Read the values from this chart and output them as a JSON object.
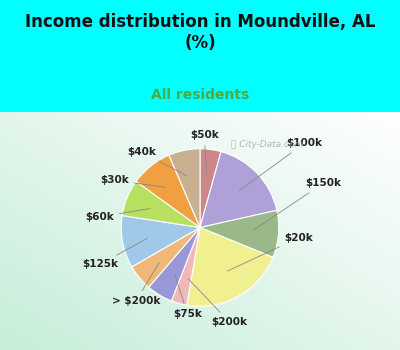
{
  "title": "Income distribution in Moundville, AL\n(%)",
  "subtitle": "All residents",
  "title_color": "#111111",
  "subtitle_color": "#4aaa44",
  "background_top": "#00ffff",
  "background_chart_color": "#d8f0e8",
  "watermark": "ⓘ City-Data.com",
  "labels": [
    "$50k",
    "$100k",
    "$150k",
    "$20k",
    "$200k",
    "$75k",
    "> $200k",
    "$125k",
    "$60k",
    "$30k",
    "$40k"
  ],
  "values": [
    4,
    16,
    9,
    20,
    3,
    5,
    5,
    10,
    7,
    8,
    6
  ],
  "colors": [
    "#cc8888",
    "#b0a0d8",
    "#9ab888",
    "#f0f090",
    "#f0b8b8",
    "#9898d8",
    "#f0b878",
    "#a0c8e8",
    "#b8e060",
    "#f0a040",
    "#c8b090"
  ],
  "label_fontsize": 7.5,
  "figsize": [
    4.0,
    3.5
  ],
  "dpi": 100
}
